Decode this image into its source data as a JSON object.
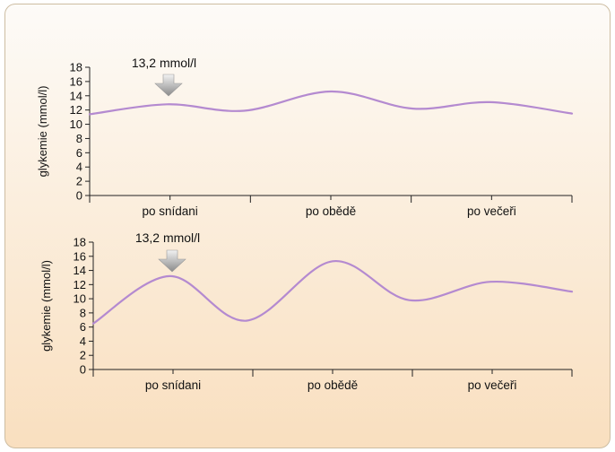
{
  "chart_data": [
    {
      "type": "line",
      "ylabel": "glykemie (mmol/l)",
      "ylim": [
        0,
        18
      ],
      "yticks": [
        0,
        2,
        4,
        6,
        8,
        10,
        12,
        14,
        16,
        18
      ],
      "categories": [
        "po snídani",
        "po obědě",
        "po večeři"
      ],
      "annotation": "13,2 mmol/l",
      "line_color": "#b48ad0",
      "series": [
        {
          "x": [
            0.0,
            0.16,
            0.32,
            0.5,
            0.67,
            0.83,
            1.0
          ],
          "y": [
            11.4,
            12.8,
            11.9,
            14.6,
            12.2,
            13.1,
            11.5
          ]
        }
      ]
    },
    {
      "type": "line",
      "ylabel": "glykemie (mmol/l)",
      "ylim": [
        0,
        18
      ],
      "yticks": [
        0,
        2,
        4,
        6,
        8,
        10,
        12,
        14,
        16,
        18
      ],
      "categories": [
        "po snídani",
        "po obědě",
        "po večeři"
      ],
      "annotation": "13,2 mmol/l",
      "line_color": "#b48ad0",
      "series": [
        {
          "x": [
            0.0,
            0.16,
            0.32,
            0.5,
            0.66,
            0.83,
            1.0
          ],
          "y": [
            6.5,
            13.2,
            6.9,
            15.3,
            9.8,
            12.4,
            11.0
          ]
        }
      ]
    }
  ]
}
